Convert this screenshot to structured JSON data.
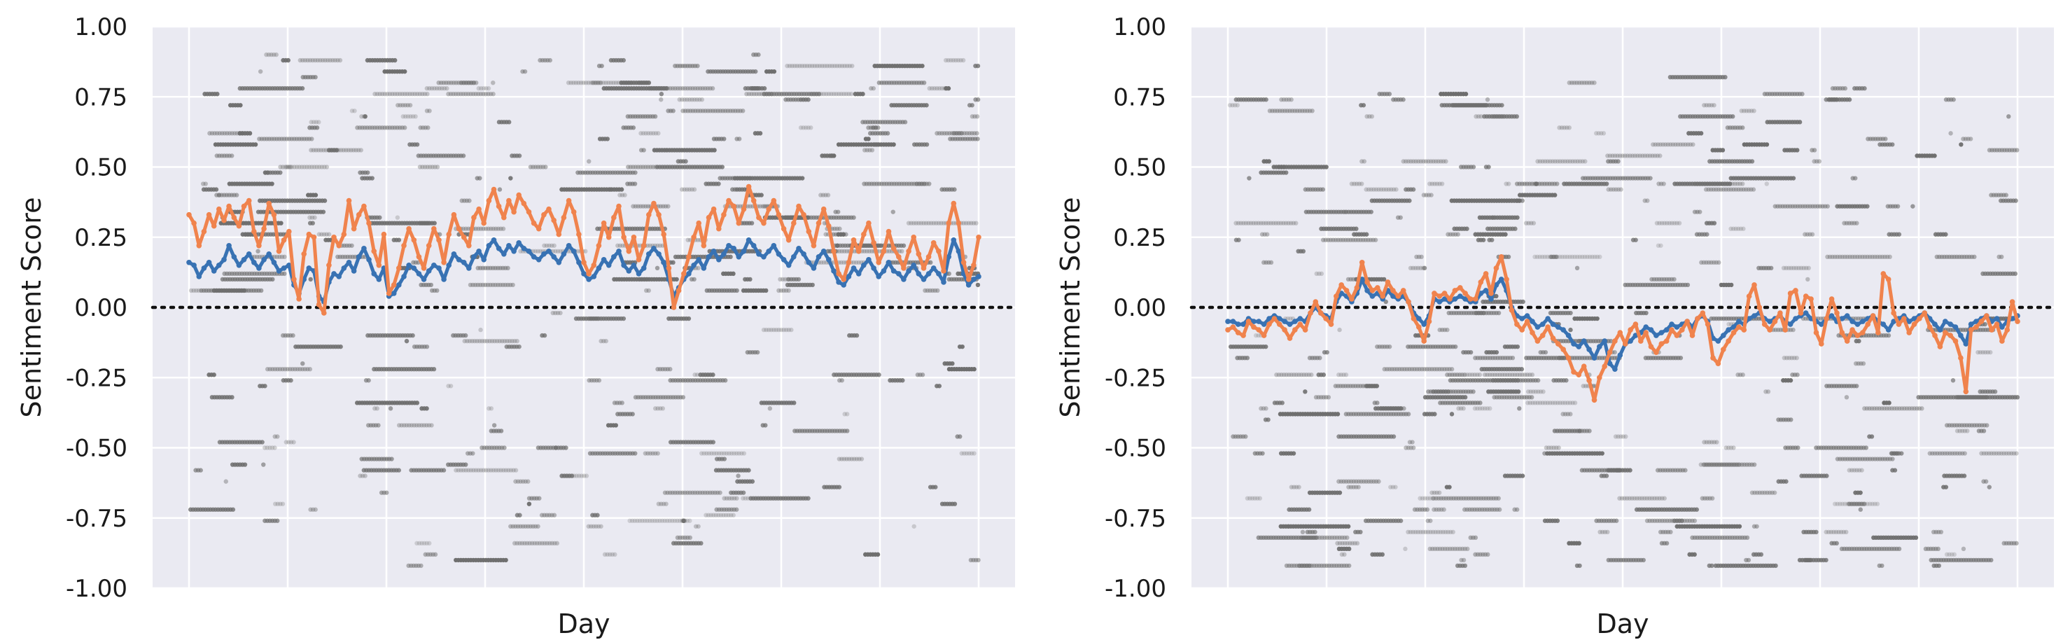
{
  "chart_data": [
    {
      "type": "line",
      "xlabel": "Day",
      "ylabel": "Sentiment Score",
      "ylim": [
        -1.0,
        1.0
      ],
      "yticks": [
        "-1.00",
        "-0.75",
        "-0.50",
        "-0.25",
        "0.00",
        "0.25",
        "0.50",
        "0.75",
        "1.00"
      ],
      "x_range": [
        0,
        158
      ],
      "grid": true,
      "reference_line": 0.0,
      "colors": {
        "series_1": "#3872b3",
        "series_2": "#f0834d",
        "points": "#6e6e6e",
        "background": "#eaeaf2"
      },
      "series": [
        {
          "values": [
            0.16,
            0.15,
            0.11,
            0.14,
            0.16,
            0.13,
            0.15,
            0.17,
            0.22,
            0.18,
            0.15,
            0.17,
            0.19,
            0.16,
            0.14,
            0.17,
            0.19,
            0.16,
            0.13,
            0.14,
            0.15,
            0.08,
            0.05,
            0.1,
            0.14,
            0.13,
            0.04,
            0.02,
            0.09,
            0.12,
            0.11,
            0.14,
            0.16,
            0.13,
            0.18,
            0.21,
            0.17,
            0.12,
            0.1,
            0.14,
            0.04,
            0.05,
            0.08,
            0.11,
            0.15,
            0.14,
            0.12,
            0.1,
            0.13,
            0.15,
            0.14,
            0.1,
            0.15,
            0.19,
            0.17,
            0.16,
            0.14,
            0.18,
            0.2,
            0.17,
            0.22,
            0.24,
            0.21,
            0.19,
            0.22,
            0.2,
            0.23,
            0.21,
            0.2,
            0.18,
            0.17,
            0.19,
            0.2,
            0.18,
            0.16,
            0.19,
            0.22,
            0.2,
            0.16,
            0.12,
            0.1,
            0.11,
            0.14,
            0.17,
            0.15,
            0.18,
            0.2,
            0.15,
            0.13,
            0.15,
            0.12,
            0.14,
            0.19,
            0.21,
            0.19,
            0.16,
            0.1,
            0.04,
            0.07,
            0.1,
            0.12,
            0.15,
            0.17,
            0.14,
            0.18,
            0.2,
            0.17,
            0.19,
            0.22,
            0.21,
            0.18,
            0.2,
            0.24,
            0.22,
            0.19,
            0.18,
            0.2,
            0.22,
            0.19,
            0.17,
            0.15,
            0.18,
            0.21,
            0.19,
            0.16,
            0.14,
            0.18,
            0.2,
            0.17,
            0.13,
            0.09,
            0.08,
            0.11,
            0.14,
            0.12,
            0.15,
            0.17,
            0.14,
            0.11,
            0.13,
            0.16,
            0.13,
            0.12,
            0.1,
            0.13,
            0.15,
            0.12,
            0.1,
            0.12,
            0.14,
            0.12,
            0.09,
            0.18,
            0.24,
            0.2,
            0.12,
            0.08,
            0.1,
            0.11
          ],
          "label_hidden": true
        },
        {
          "values": [
            0.33,
            0.3,
            0.22,
            0.27,
            0.33,
            0.29,
            0.35,
            0.31,
            0.36,
            0.32,
            0.29,
            0.36,
            0.38,
            0.27,
            0.22,
            0.28,
            0.37,
            0.33,
            0.2,
            0.24,
            0.27,
            0.1,
            0.03,
            0.19,
            0.26,
            0.25,
            0.01,
            -0.02,
            0.15,
            0.25,
            0.22,
            0.26,
            0.38,
            0.28,
            0.33,
            0.36,
            0.3,
            0.2,
            0.15,
            0.26,
            0.05,
            0.08,
            0.14,
            0.22,
            0.28,
            0.24,
            0.18,
            0.14,
            0.22,
            0.28,
            0.24,
            0.16,
            0.26,
            0.33,
            0.28,
            0.25,
            0.22,
            0.32,
            0.35,
            0.3,
            0.38,
            0.42,
            0.36,
            0.32,
            0.38,
            0.34,
            0.4,
            0.37,
            0.34,
            0.3,
            0.28,
            0.33,
            0.35,
            0.31,
            0.26,
            0.32,
            0.38,
            0.34,
            0.26,
            0.16,
            0.12,
            0.15,
            0.22,
            0.3,
            0.25,
            0.32,
            0.36,
            0.25,
            0.2,
            0.25,
            0.17,
            0.22,
            0.33,
            0.37,
            0.33,
            0.26,
            0.14,
            0.0,
            0.06,
            0.12,
            0.18,
            0.25,
            0.3,
            0.22,
            0.32,
            0.35,
            0.28,
            0.33,
            0.38,
            0.36,
            0.3,
            0.35,
            0.43,
            0.38,
            0.32,
            0.3,
            0.35,
            0.38,
            0.33,
            0.28,
            0.24,
            0.3,
            0.36,
            0.33,
            0.27,
            0.22,
            0.3,
            0.35,
            0.29,
            0.2,
            0.12,
            0.1,
            0.16,
            0.24,
            0.2,
            0.26,
            0.3,
            0.23,
            0.16,
            0.2,
            0.27,
            0.21,
            0.18,
            0.14,
            0.2,
            0.25,
            0.19,
            0.14,
            0.18,
            0.23,
            0.2,
            0.13,
            0.3,
            0.37,
            0.3,
            0.16,
            0.1,
            0.15,
            0.25
          ],
          "label_hidden": true
        }
      ]
    },
    {
      "type": "line",
      "xlabel": "Day",
      "ylabel": "Sentiment Score",
      "ylim": [
        -1.0,
        1.0
      ],
      "yticks": [
        "-1.00",
        "-0.75",
        "-0.50",
        "-0.25",
        "0.00",
        "0.25",
        "0.50",
        "0.75",
        "1.00"
      ],
      "x_range": [
        0,
        158
      ],
      "grid": true,
      "reference_line": 0.0,
      "colors": {
        "series_1": "#3872b3",
        "series_2": "#f0834d",
        "points": "#6e6e6e",
        "background": "#eaeaf2"
      },
      "series": [
        {
          "values": [
            -0.05,
            -0.05,
            -0.06,
            -0.06,
            -0.04,
            -0.05,
            -0.05,
            -0.06,
            -0.04,
            -0.03,
            -0.04,
            -0.05,
            -0.06,
            -0.05,
            -0.04,
            -0.05,
            -0.02,
            0.0,
            -0.02,
            -0.03,
            -0.04,
            0.02,
            0.05,
            0.04,
            0.02,
            0.05,
            0.1,
            0.06,
            0.04,
            0.05,
            0.03,
            0.06,
            0.04,
            0.03,
            0.04,
            0.02,
            -0.02,
            -0.04,
            -0.06,
            -0.03,
            0.03,
            0.02,
            0.03,
            0.02,
            0.03,
            0.04,
            0.03,
            0.02,
            0.02,
            0.05,
            0.06,
            0.03,
            0.08,
            0.1,
            0.06,
            0.0,
            -0.03,
            -0.04,
            -0.03,
            -0.05,
            -0.07,
            -0.06,
            -0.04,
            -0.06,
            -0.07,
            -0.08,
            -0.1,
            -0.13,
            -0.14,
            -0.12,
            -0.15,
            -0.18,
            -0.14,
            -0.12,
            -0.2,
            -0.22,
            -0.17,
            -0.13,
            -0.12,
            -0.1,
            -0.09,
            -0.07,
            -0.08,
            -0.1,
            -0.09,
            -0.08,
            -0.06,
            -0.07,
            -0.06,
            -0.05,
            -0.07,
            -0.04,
            -0.03,
            -0.05,
            -0.11,
            -0.12,
            -0.1,
            -0.08,
            -0.07,
            -0.05,
            -0.06,
            -0.04,
            -0.03,
            -0.02,
            -0.04,
            -0.05,
            -0.04,
            -0.03,
            -0.05,
            -0.06,
            -0.04,
            -0.03,
            -0.02,
            -0.04,
            -0.05,
            -0.06,
            -0.04,
            -0.03,
            -0.05,
            -0.04,
            -0.03,
            -0.05,
            -0.06,
            -0.05,
            -0.04,
            -0.03,
            -0.05,
            -0.06,
            -0.08,
            -0.05,
            -0.04,
            -0.03,
            -0.05,
            -0.04,
            -0.03,
            -0.02,
            -0.04,
            -0.06,
            -0.08,
            -0.05,
            -0.06,
            -0.07,
            -0.1,
            -0.13,
            -0.06,
            -0.05,
            -0.04,
            -0.03,
            -0.05,
            -0.04,
            -0.07,
            -0.05,
            -0.04,
            -0.03
          ],
          "label_hidden": true
        },
        {
          "values": [
            -0.08,
            -0.07,
            -0.09,
            -0.1,
            -0.05,
            -0.07,
            -0.08,
            -0.1,
            -0.06,
            -0.04,
            -0.06,
            -0.08,
            -0.11,
            -0.08,
            -0.06,
            -0.08,
            -0.02,
            0.02,
            -0.02,
            -0.04,
            -0.06,
            0.04,
            0.08,
            0.06,
            0.03,
            0.07,
            0.16,
            0.09,
            0.06,
            0.07,
            0.04,
            0.09,
            0.06,
            0.04,
            0.06,
            0.02,
            -0.04,
            -0.07,
            -0.12,
            -0.05,
            0.05,
            0.04,
            0.05,
            0.03,
            0.06,
            0.07,
            0.05,
            0.03,
            0.03,
            0.09,
            0.12,
            0.05,
            0.14,
            0.18,
            0.1,
            -0.01,
            -0.06,
            -0.08,
            -0.05,
            -0.09,
            -0.12,
            -0.1,
            -0.07,
            -0.11,
            -0.13,
            -0.15,
            -0.18,
            -0.23,
            -0.24,
            -0.21,
            -0.26,
            -0.33,
            -0.25,
            -0.21,
            -0.16,
            -0.12,
            -0.09,
            -0.13,
            -0.08,
            -0.06,
            -0.12,
            -0.09,
            -0.14,
            -0.16,
            -0.13,
            -0.12,
            -0.08,
            -0.1,
            -0.08,
            -0.05,
            -0.1,
            -0.04,
            -0.02,
            -0.06,
            -0.18,
            -0.2,
            -0.15,
            -0.12,
            -0.09,
            -0.07,
            -0.08,
            0.04,
            0.08,
            0.0,
            -0.06,
            -0.08,
            -0.05,
            -0.02,
            -0.08,
            0.05,
            0.06,
            -0.02,
            0.04,
            0.03,
            -0.09,
            -0.13,
            -0.04,
            0.03,
            -0.02,
            -0.09,
            -0.12,
            -0.08,
            -0.1,
            -0.09,
            -0.06,
            -0.03,
            -0.09,
            0.12,
            0.1,
            -0.02,
            -0.06,
            -0.04,
            -0.09,
            -0.06,
            -0.04,
            -0.02,
            -0.07,
            -0.1,
            -0.14,
            -0.09,
            -0.1,
            -0.12,
            -0.18,
            -0.3,
            -0.08,
            -0.07,
            -0.05,
            -0.03,
            -0.08,
            -0.06,
            -0.12,
            -0.08,
            0.02,
            -0.05
          ],
          "label_hidden": true
        }
      ]
    }
  ]
}
